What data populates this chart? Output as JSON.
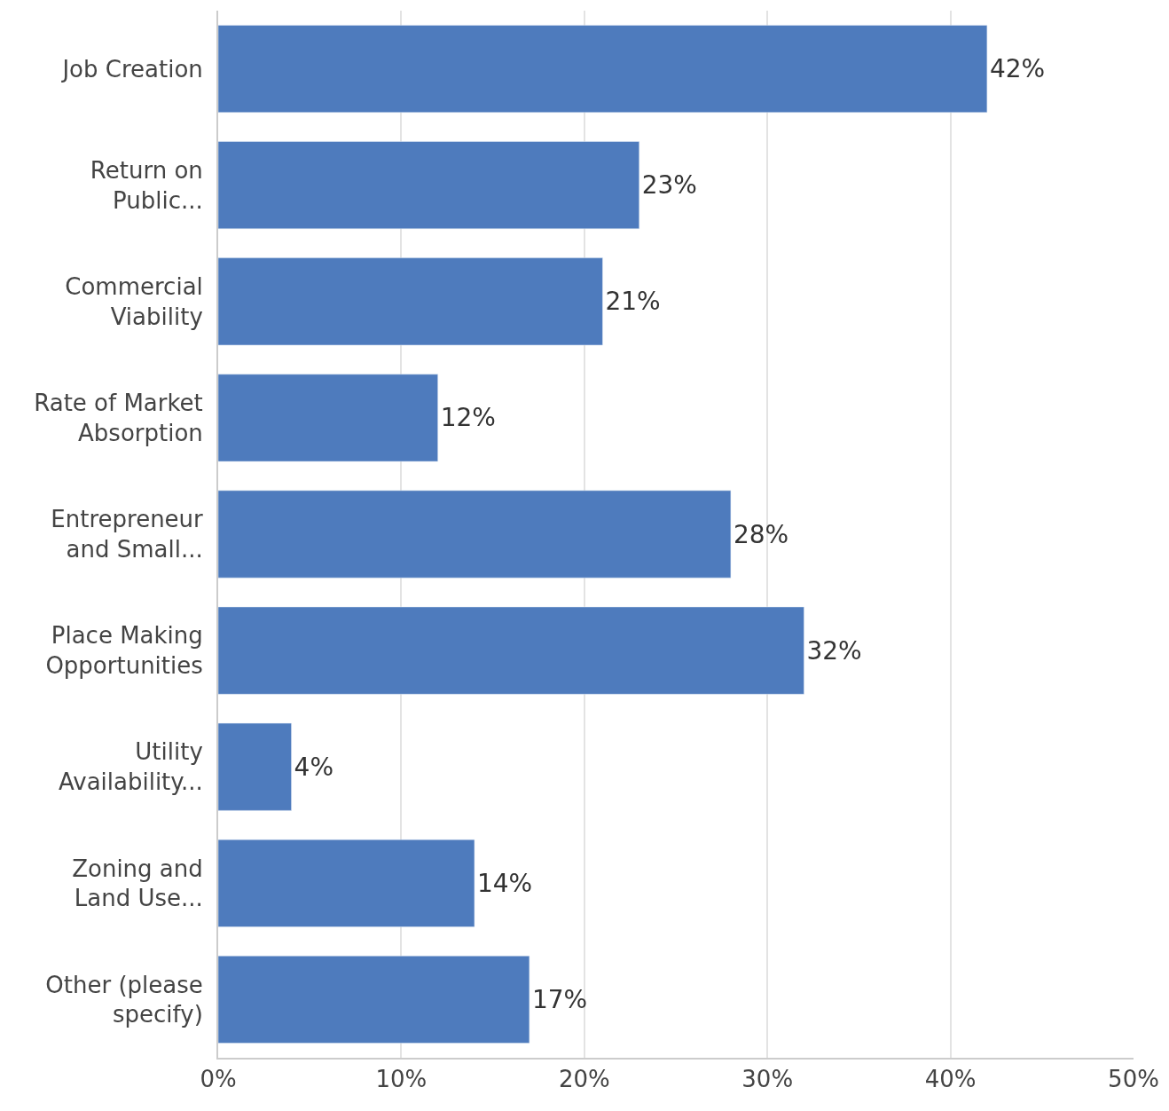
{
  "chart_data": {
    "type": "bar",
    "orientation": "horizontal",
    "categories": [
      "Job Creation",
      "Return on\nPublic...",
      "Commercial\nViability",
      "Rate of Market\nAbsorption",
      "Entrepreneur\nand Small...",
      "Place Making\nOpportunities",
      "Utility\nAvailability...",
      "Zoning and\nLand Use...",
      "Other (please\nspecify)"
    ],
    "values": [
      42,
      23,
      21,
      12,
      28,
      32,
      4,
      14,
      17
    ],
    "value_labels": [
      "42%",
      "23%",
      "21%",
      "12%",
      "28%",
      "32%",
      "4%",
      "14%",
      "17%"
    ],
    "color": "#4e7bbd",
    "xlim": [
      0,
      50
    ],
    "xticks": [
      {
        "value": 0,
        "label": "0%"
      },
      {
        "value": 10,
        "label": "10%"
      },
      {
        "value": 20,
        "label": "20%"
      },
      {
        "value": 30,
        "label": "30%"
      },
      {
        "value": 40,
        "label": "40%"
      },
      {
        "value": 50,
        "label": "50%"
      }
    ],
    "grid": "x",
    "legend": false
  }
}
